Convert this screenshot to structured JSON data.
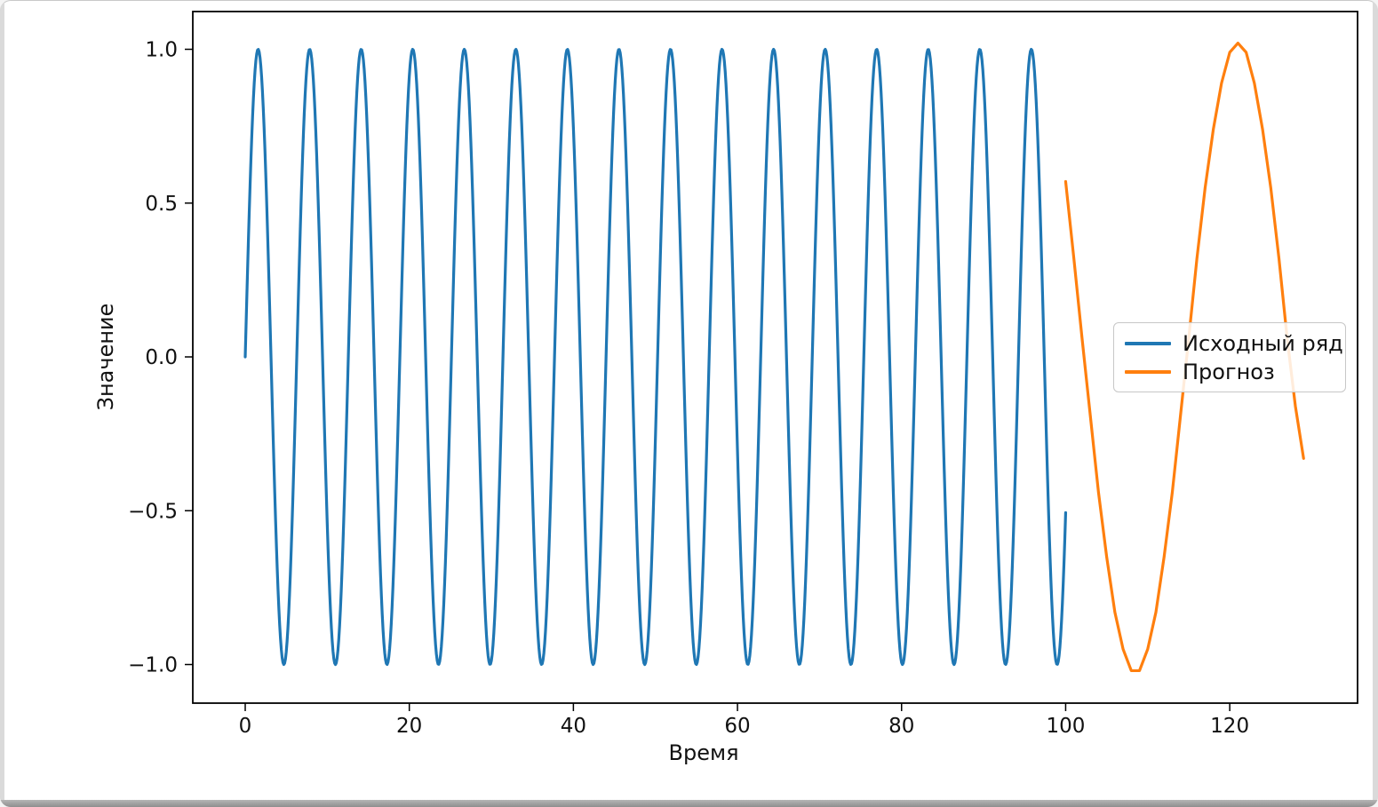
{
  "window": {
    "background": "#ffffff",
    "frame_border_color": "#c9c9c9",
    "side_strip_color": "#dadada",
    "bottom_bar_color": "#9a9a9a"
  },
  "chart_data": {
    "type": "line",
    "title": "",
    "xlabel": "Время",
    "ylabel": "Значение",
    "grid": false,
    "plot_background": "#ffffff",
    "spine_color": "#000000",
    "text_color": "#111111",
    "xlim": [
      -6.39,
      135.58
    ],
    "ylim": [
      -1.1255,
      1.1227
    ],
    "x_ticks": [
      {
        "v": 0,
        "label": "0"
      },
      {
        "v": 20,
        "label": "20"
      },
      {
        "v": 40,
        "label": "40"
      },
      {
        "v": 60,
        "label": "60"
      },
      {
        "v": 80,
        "label": "80"
      },
      {
        "v": 100,
        "label": "100"
      },
      {
        "v": 120,
        "label": "120"
      }
    ],
    "y_ticks": [
      {
        "v": -1.0,
        "label": "−1.0"
      },
      {
        "v": -0.5,
        "label": "−0.5"
      },
      {
        "v": 0.0,
        "label": "0.0"
      },
      {
        "v": 0.5,
        "label": "0.5"
      },
      {
        "v": 1.0,
        "label": "1.0"
      }
    ],
    "legend": {
      "position": "center-right",
      "entries": [
        {
          "label": "Исходный ряд",
          "color": "#1f77b4"
        },
        {
          "label": "Прогноз",
          "color": "#ff7f0e"
        }
      ]
    },
    "series": [
      {
        "name": "Исходный ряд",
        "color": "#1f77b4",
        "kind": "function",
        "formula": "y = sin(t)",
        "amplitude": 1,
        "omega": 1,
        "phase": 0,
        "t_start": 0,
        "t_end": 100,
        "samples": 1000
      },
      {
        "name": "Прогноз",
        "color": "#ff7f0e",
        "kind": "points",
        "points": [
          [
            100,
            0.57
          ],
          [
            101,
            0.32
          ],
          [
            102,
            0.06
          ],
          [
            103,
            -0.19
          ],
          [
            104,
            -0.44
          ],
          [
            105,
            -0.65
          ],
          [
            106,
            -0.83
          ],
          [
            107,
            -0.95
          ],
          [
            108,
            -1.02
          ],
          [
            109,
            -1.02
          ],
          [
            110,
            -0.95
          ],
          [
            111,
            -0.83
          ],
          [
            112,
            -0.65
          ],
          [
            113,
            -0.44
          ],
          [
            114,
            -0.19
          ],
          [
            115,
            0.06
          ],
          [
            116,
            0.32
          ],
          [
            117,
            0.55
          ],
          [
            118,
            0.74
          ],
          [
            119,
            0.89
          ],
          [
            120,
            0.99
          ],
          [
            121,
            1.02
          ],
          [
            122,
            0.99
          ],
          [
            123,
            0.89
          ],
          [
            124,
            0.74
          ],
          [
            125,
            0.55
          ],
          [
            126,
            0.32
          ],
          [
            127,
            0.06
          ],
          [
            128,
            -0.16
          ],
          [
            129,
            -0.33
          ]
        ]
      }
    ]
  }
}
